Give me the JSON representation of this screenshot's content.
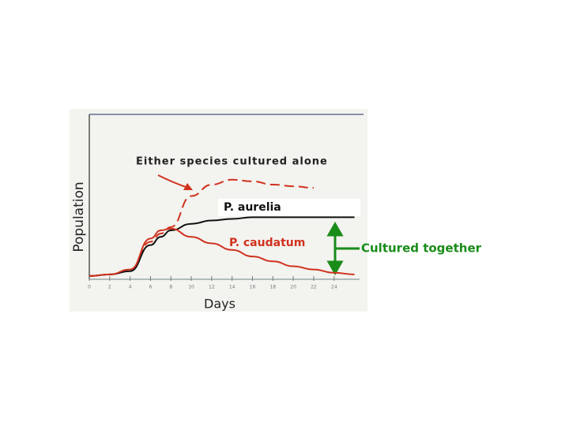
{
  "chart_data": {
    "type": "line",
    "xlabel": "Days",
    "ylabel": "Population",
    "x": [
      0,
      2,
      4,
      6,
      7,
      8,
      10,
      12,
      14,
      16,
      18,
      20,
      22,
      24,
      26
    ],
    "series": [
      {
        "name": "Either species cultured alone",
        "color": "#d0321e",
        "dashed": true,
        "values": [
          1,
          2,
          5,
          22,
          27,
          31,
          50,
          57,
          60,
          59,
          57,
          56,
          55,
          null,
          null
        ]
      },
      {
        "name": "P. aurelia",
        "color": "#111111",
        "dashed": false,
        "values": [
          1,
          2,
          4,
          20,
          25,
          29,
          33,
          35,
          36,
          37,
          37,
          37,
          37,
          37,
          37
        ]
      },
      {
        "name": "P. caudatum",
        "color": "#d0321e",
        "dashed": false,
        "values": [
          1,
          2,
          5,
          24,
          29,
          30,
          25,
          21,
          17,
          13,
          10,
          7,
          5,
          3,
          2
        ]
      }
    ],
    "annotation": "Cultured together",
    "xlim": [
      0,
      26.5
    ],
    "ylim": [
      0,
      100
    ],
    "xticks": [
      0,
      2,
      4,
      6,
      8,
      10,
      12,
      14,
      16,
      18,
      20,
      22,
      24
    ]
  }
}
